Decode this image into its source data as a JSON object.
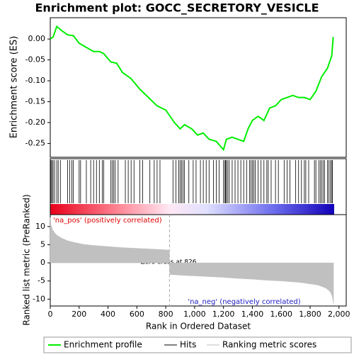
{
  "chart_data": [
    {
      "type": "line",
      "title": "Enrichment plot: GOCC_SECRETORY_VESICLE",
      "ylabel": "Enrichment score (ES)",
      "x": [
        0,
        20,
        45,
        80,
        120,
        160,
        200,
        250,
        300,
        340,
        370,
        420,
        460,
        500,
        560,
        620,
        680,
        740,
        800,
        860,
        900,
        930,
        980,
        1020,
        1060,
        1100,
        1150,
        1200,
        1220,
        1260,
        1300,
        1340,
        1370,
        1400,
        1440,
        1480,
        1520,
        1560,
        1600,
        1640,
        1680,
        1720,
        1760,
        1800,
        1840,
        1880,
        1920,
        1950,
        1960
      ],
      "series": [
        {
          "name": "Enrichment profile",
          "color": "#00ee00",
          "values": [
            0,
            0.005,
            0.03,
            0.02,
            0.01,
            0.008,
            -0.01,
            -0.02,
            -0.03,
            -0.03,
            -0.035,
            -0.055,
            -0.058,
            -0.08,
            -0.095,
            -0.12,
            -0.14,
            -0.16,
            -0.17,
            -0.2,
            -0.215,
            -0.205,
            -0.215,
            -0.23,
            -0.225,
            -0.24,
            -0.245,
            -0.265,
            -0.24,
            -0.235,
            -0.24,
            -0.245,
            -0.215,
            -0.195,
            -0.185,
            -0.195,
            -0.165,
            -0.16,
            -0.145,
            -0.14,
            -0.135,
            -0.14,
            -0.14,
            -0.145,
            -0.125,
            -0.09,
            -0.07,
            -0.04,
            0.005
          ]
        }
      ],
      "xlim": [
        0,
        2050
      ],
      "ylim": [
        -0.283,
        0.051
      ],
      "yticks": [
        {
          "value": 0,
          "label": "0.00"
        },
        {
          "value": -0.05,
          "label": "-0.05"
        },
        {
          "value": -0.1,
          "label": "-0.10"
        },
        {
          "value": -0.15,
          "label": "-0.15"
        },
        {
          "value": -0.2,
          "label": "-0.20"
        },
        {
          "value": -0.25,
          "label": "-0.25"
        }
      ]
    },
    {
      "type": "hits",
      "xlim": [
        0,
        2050
      ],
      "series": [
        {
          "name": "Hits",
          "color": "#000000",
          "x": [
            5,
            12,
            20,
            30,
            45,
            55,
            70,
            120,
            135,
            150,
            160,
            200,
            210,
            250,
            280,
            300,
            320,
            340,
            360,
            370,
            420,
            430,
            440,
            450,
            470,
            520,
            540,
            560,
            580,
            620,
            640,
            690,
            720,
            740,
            760,
            850,
            870,
            890,
            900,
            910,
            920,
            930,
            960,
            990,
            1010,
            1040,
            1060,
            1080,
            1100,
            1130,
            1150,
            1170,
            1200,
            1210,
            1215,
            1220,
            1230,
            1240,
            1260,
            1280,
            1300,
            1320,
            1340,
            1360,
            1380,
            1390,
            1400,
            1410,
            1420,
            1440,
            1460,
            1480,
            1500,
            1510,
            1530,
            1560,
            1580,
            1620,
            1640,
            1660,
            1700,
            1720,
            1740,
            1760,
            1770,
            1790,
            1830,
            1840,
            1860,
            1870,
            1880,
            1890,
            1900,
            1920,
            1930,
            1940,
            1950,
            1955
          ]
        }
      ]
    },
    {
      "type": "area",
      "ylabel": "Ranked list metric (PreRanked)",
      "xlabel": "Rank in Ordered Dataset",
      "x": [
        0,
        5,
        15,
        30,
        50,
        80,
        120,
        170,
        230,
        300,
        400,
        500,
        600,
        700,
        800,
        825,
        827,
        900,
        1000,
        1100,
        1200,
        1300,
        1400,
        1500,
        1600,
        1700,
        1750,
        1800,
        1850,
        1880,
        1910,
        1930,
        1945,
        1955,
        1962
      ],
      "series": [
        {
          "name": "Ranking metric scores",
          "color": "#c0c0c0",
          "values": [
            12.5,
            10.5,
            9.2,
            8.3,
            7.5,
            6.8,
            6.1,
            5.6,
            5.1,
            4.8,
            4.5,
            4.2,
            4.0,
            3.8,
            3.6,
            3.5,
            -3.2,
            -3.4,
            -3.6,
            -3.8,
            -4.0,
            -4.3,
            -4.5,
            -4.8,
            -5.0,
            -5.3,
            -5.5,
            -5.8,
            -6.1,
            -6.5,
            -7.0,
            -7.6,
            -8.4,
            -9.5,
            -11.3
          ]
        }
      ],
      "xlim": [
        0,
        2050
      ],
      "ylim": [
        -11.9,
        13.3
      ],
      "zero_cross": 826,
      "yticks": [
        10,
        5,
        0,
        -5,
        -10
      ],
      "xticks": [
        0,
        200,
        400,
        600,
        800,
        {
          "value": 1000,
          "label": "1,000"
        },
        {
          "value": 1200,
          "label": "1,200"
        },
        {
          "value": 1400,
          "label": "1,400"
        },
        {
          "value": 1600,
          "label": "1,600"
        },
        {
          "value": 1800,
          "label": "1,800"
        },
        {
          "value": 2000,
          "label": "2,000"
        }
      ],
      "annotations": [
        "'na_pos' (positively correlated)",
        "Zero cross at 826",
        "'na_neg' (negatively correlated)"
      ]
    }
  ]
}
